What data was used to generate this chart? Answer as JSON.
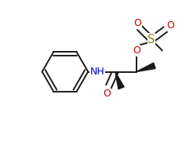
{
  "bg_color": "#ffffff",
  "line_color": "#1a1a1a",
  "atom_colors": {
    "O": "#cc0000",
    "N": "#0000cc",
    "S": "#888800",
    "C": "#1a1a1a"
  },
  "lw": 1.4,
  "dbo": 0.012,
  "fs": 8.5,
  "figsize": [
    2.46,
    1.85
  ],
  "dpi": 100,
  "xlim": [
    0,
    246
  ],
  "ylim": [
    0,
    185
  ]
}
